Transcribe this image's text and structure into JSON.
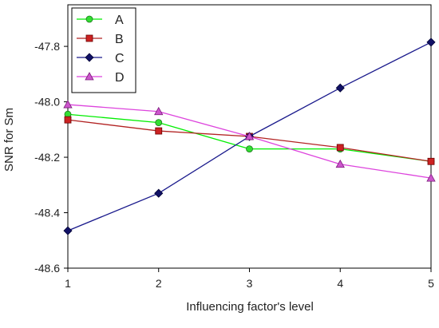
{
  "chart_data": {
    "type": "line",
    "x": [
      1,
      2,
      3,
      4,
      5
    ],
    "xlabel": "Influencing factor's level",
    "ylabel": "SNR for Sm",
    "xlim": [
      1,
      5
    ],
    "ylim": [
      -48.6,
      -47.65
    ],
    "xticks": [
      1,
      2,
      3,
      4,
      5
    ],
    "yticks": [
      -48.6,
      -48.4,
      -48.2,
      -48.0,
      -47.8
    ],
    "ytick_labels": [
      "-48.6",
      "-48.4",
      "-48.2",
      "-48.0",
      "-47.8"
    ],
    "grid": false,
    "legend": {
      "placement": "top-left"
    },
    "series": [
      {
        "name": "A",
        "values": [
          -48.045,
          -48.075,
          -48.17,
          -48.17,
          -48.215
        ],
        "color": "#00ee00",
        "marker_fill": "#33dd33",
        "marker": "circle"
      },
      {
        "name": "B",
        "values": [
          -48.065,
          -48.105,
          -48.125,
          -48.165,
          -48.215
        ],
        "color": "#b22222",
        "marker_fill": "#cc2222",
        "marker": "square"
      },
      {
        "name": "C",
        "values": [
          -48.465,
          -48.33,
          -48.125,
          -47.95,
          -47.785
        ],
        "color": "#1a1a8c",
        "marker_fill": "#111166",
        "marker": "diamond"
      },
      {
        "name": "D",
        "values": [
          -48.01,
          -48.035,
          -48.125,
          -48.225,
          -48.275
        ],
        "color": "#dd44dd",
        "marker_fill": "#cc55cc",
        "marker": "triangle"
      }
    ]
  }
}
